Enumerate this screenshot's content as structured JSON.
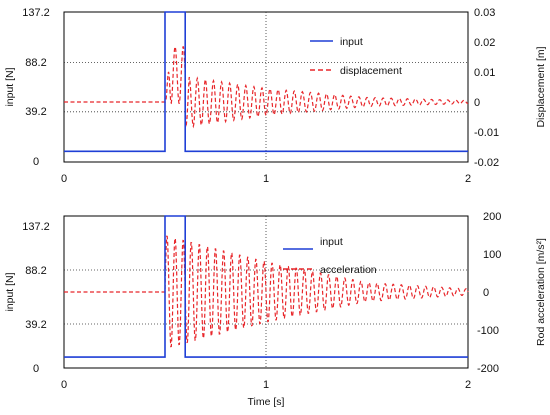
{
  "chart_data": [
    {
      "type": "line",
      "x_range": [
        0,
        2
      ],
      "x_ticks": [
        "0",
        "1",
        "2"
      ],
      "ylabel_left": "input [N]",
      "ylim_left": [
        0,
        137.2
      ],
      "yticks_left": [
        "0",
        "39.2",
        "88.2",
        "137.2"
      ],
      "ylabel_right": "Displacement [m]",
      "ylim_right": [
        -0.02,
        0.03
      ],
      "yticks_right": [
        "-0.02",
        "-0.01",
        "0",
        "0.01",
        "0.02",
        "0.03"
      ],
      "grid": "dotted lines at y = 39.2, 88.2 and x = 1",
      "legend_position": "upper-right inside plot",
      "series": [
        {
          "name": "input",
          "axis": "left",
          "color": "#1f3fd6",
          "style": "solid",
          "x": [
            0,
            0.5,
            0.5,
            0.6,
            0.6,
            2.0
          ],
          "y": [
            9.8,
            9.8,
            137.2,
            137.2,
            9.8,
            9.8
          ]
        },
        {
          "name": "displacement",
          "axis": "right",
          "color": "#e8262a",
          "style": "dashed",
          "baseline": 0,
          "onset_x": 0.5,
          "peak_time_x": 0.55,
          "peak_value_max": 0.0185,
          "peak_value_min": -0.0005,
          "after_pulse_first_trough": -0.0085,
          "oscillation_period": 0.04,
          "decay_envelope": [
            {
              "x": 0.6,
              "amplitude": 0.0085
            },
            {
              "x": 1.0,
              "amplitude": 0.0045
            },
            {
              "x": 1.5,
              "amplitude": 0.0015
            },
            {
              "x": 2.0,
              "amplitude": 0.0005
            }
          ]
        }
      ]
    },
    {
      "type": "line",
      "x_range": [
        0,
        2
      ],
      "x_ticks": [
        "0",
        "1",
        "2"
      ],
      "xlabel": "Time [s]",
      "ylabel_left": "input [N]",
      "ylim_left": [
        0,
        137.2
      ],
      "yticks_left": [
        "0",
        "39.2",
        "88.2",
        "137.2"
      ],
      "ylabel_right": "Rod acceleration  [m/s²]",
      "ylim_right": [
        -200,
        200
      ],
      "yticks_right": [
        "-200",
        "-100",
        "0",
        "100",
        "200"
      ],
      "grid": "dotted lines at y = 39.2, 88.2 and x = 1",
      "legend_position": "upper-right inside plot",
      "series": [
        {
          "name": "input",
          "axis": "left",
          "color": "#1f3fd6",
          "style": "solid",
          "x": [
            0,
            0.5,
            0.5,
            0.6,
            0.6,
            2.0
          ],
          "y": [
            9.8,
            9.8,
            137.2,
            137.2,
            9.8,
            9.8
          ]
        },
        {
          "name": "acceleration",
          "axis": "right",
          "color": "#e8262a",
          "style": "dashed",
          "baseline": 0,
          "onset_x": 0.5,
          "oscillation_period": 0.04,
          "decay_envelope": [
            {
              "x": 0.5,
              "amplitude": 150
            },
            {
              "x": 1.0,
              "amplitude": 80
            },
            {
              "x": 1.5,
              "amplitude": 25
            },
            {
              "x": 2.0,
              "amplitude": 8
            }
          ]
        }
      ]
    }
  ]
}
